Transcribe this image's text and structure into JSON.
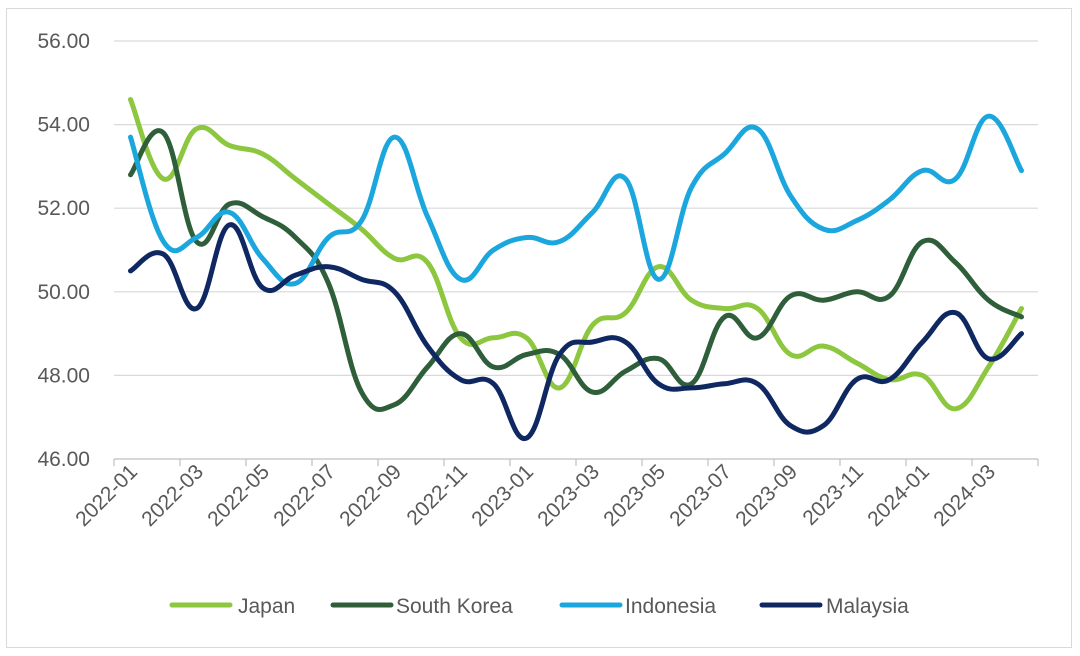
{
  "chart_data": {
    "type": "line",
    "title": "",
    "xlabel": "",
    "ylabel": "",
    "ylim": [
      46,
      56
    ],
    "y_ticks": [
      "46.00",
      "48.00",
      "50.00",
      "52.00",
      "54.00",
      "56.00"
    ],
    "x": [
      "2022-01",
      "2022-02",
      "2022-03",
      "2022-04",
      "2022-05",
      "2022-06",
      "2022-07",
      "2022-08",
      "2022-09",
      "2022-10",
      "2022-11",
      "2022-12",
      "2023-01",
      "2023-02",
      "2023-03",
      "2023-04",
      "2023-05",
      "2023-06",
      "2023-07",
      "2023-08",
      "2023-09",
      "2023-10",
      "2023-11",
      "2023-12",
      "2024-01",
      "2024-02",
      "2024-03",
      "2024-04"
    ],
    "x_tick_labels": [
      "2022-01",
      "2022-03",
      "2022-05",
      "2022-07",
      "2022-09",
      "2022-11",
      "2023-01",
      "2023-03",
      "2023-05",
      "2023-07",
      "2023-09",
      "2023-11",
      "2024-01",
      "2024-03"
    ],
    "grid": "horizontal",
    "legend_position": "bottom",
    "series": [
      {
        "name": "Japan",
        "color": "#8dc63f",
        "values": [
          54.6,
          52.7,
          53.9,
          53.5,
          53.3,
          52.7,
          52.1,
          51.5,
          50.8,
          50.7,
          48.9,
          48.9,
          48.9,
          47.7,
          49.2,
          49.5,
          50.6,
          49.8,
          49.6,
          49.6,
          48.5,
          48.7,
          48.3,
          47.9,
          48.0,
          47.2,
          48.2,
          49.6
        ]
      },
      {
        "name": "South Korea",
        "color": "#2f5e3a",
        "values": [
          52.8,
          53.8,
          51.2,
          52.1,
          51.8,
          51.3,
          50.2,
          47.6,
          47.3,
          48.2,
          49.0,
          48.2,
          48.5,
          48.5,
          47.6,
          48.1,
          48.4,
          47.8,
          49.4,
          48.9,
          49.9,
          49.8,
          50.0,
          49.9,
          51.2,
          50.7,
          49.8,
          49.4
        ]
      },
      {
        "name": "Indonesia",
        "color": "#1ba7dd",
        "values": [
          53.7,
          51.2,
          51.3,
          51.9,
          50.8,
          50.2,
          51.3,
          51.7,
          53.7,
          51.8,
          50.3,
          51.0,
          51.3,
          51.2,
          51.9,
          52.7,
          50.3,
          52.5,
          53.3,
          53.9,
          52.3,
          51.5,
          51.7,
          52.2,
          52.9,
          52.7,
          54.2,
          52.9
        ]
      },
      {
        "name": "Malaysia",
        "color": "#0f2862",
        "values": [
          50.5,
          50.9,
          49.6,
          51.6,
          50.1,
          50.4,
          50.6,
          50.3,
          50.0,
          48.7,
          47.9,
          47.8,
          46.5,
          48.5,
          48.8,
          48.8,
          47.8,
          47.7,
          47.8,
          47.8,
          46.8,
          46.8,
          47.9,
          47.9,
          48.8,
          49.5,
          48.4,
          49.0
        ]
      }
    ]
  }
}
